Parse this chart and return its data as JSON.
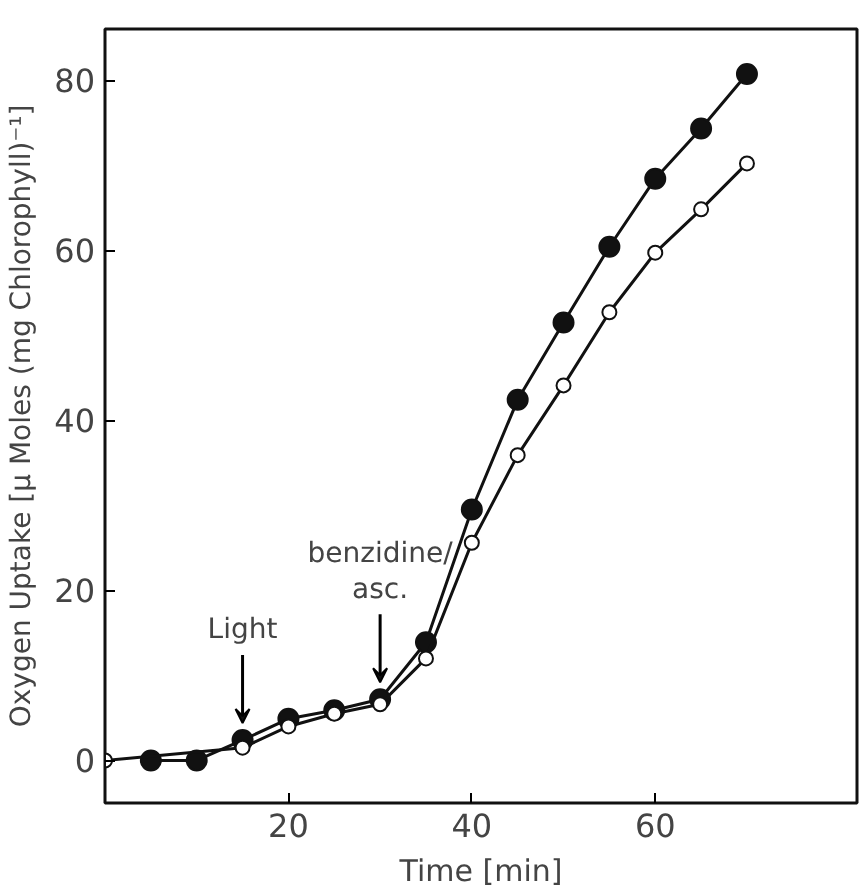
{
  "chart_data": {
    "type": "line",
    "xlabel": "Time [min]",
    "ylabel": "Oxygen Uptake [μ Moles (mg Chlorophyll)⁻¹]",
    "x": [
      0,
      5,
      10,
      15,
      20,
      25,
      30,
      35,
      40,
      45,
      50,
      55,
      60,
      65,
      70
    ],
    "series": [
      {
        "color": "#111111",
        "values": [
          null,
          0,
          0,
          2.4,
          4.9,
          5.9,
          7.2,
          13.9,
          29.5,
          42.4,
          51.5,
          60.4,
          68.4,
          74.3,
          80.7
        ]
      },
      {
        "color": "#111111",
        "colors": [
          "#ffffff",
          "#ffffff",
          "#ffffff",
          "#ffffff",
          "#ffffff",
          "#ffffff",
          "#ffffff",
          "#ffffff",
          "#ffffff",
          "#ffffff",
          "#ffffff",
          "#ffffff",
          "#ffffff",
          "#ffffff",
          "#ffffff"
        ],
        "values": [
          0,
          null,
          null,
          1.5,
          4,
          5.5,
          6.6,
          12,
          25.6,
          35.9,
          44.1,
          52.7,
          59.7,
          64.8,
          70.2
        ]
      }
    ],
    "marker": "circle",
    "line_style": "solid",
    "grid": false,
    "xlim": [
      0,
      82
    ],
    "xticks": [
      20,
      40,
      60
    ],
    "ylim": [
      -5,
      86
    ],
    "yticks": [
      0,
      20,
      40,
      60,
      80
    ],
    "annotations": [
      {
        "text": "Light",
        "x": 15,
        "y": 2.4
      },
      {
        "text": "benzidine/\nasc.",
        "x": 30,
        "y": 7.2
      }
    ]
  }
}
